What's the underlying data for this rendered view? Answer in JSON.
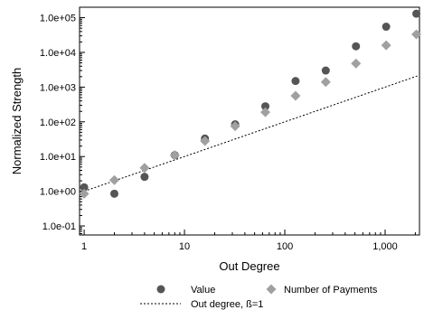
{
  "chart_data": {
    "type": "scatter",
    "title": "",
    "xlabel": "Out Degree",
    "ylabel": "Normalized Strength",
    "x_scale": "log",
    "y_scale": "log",
    "xlim": [
      0.9,
      2200
    ],
    "ylim": [
      0.055,
      200000
    ],
    "x_ticks": [
      {
        "value": 1,
        "label": "1"
      },
      {
        "value": 10,
        "label": "10"
      },
      {
        "value": 100,
        "label": "100"
      },
      {
        "value": 1000,
        "label": "1,000"
      }
    ],
    "y_ticks": [
      {
        "value": 0.1,
        "label": "1.0e-01"
      },
      {
        "value": 1,
        "label": "1.0e+00"
      },
      {
        "value": 10,
        "label": "1.0e+01"
      },
      {
        "value": 100,
        "label": "1.0e+02"
      },
      {
        "value": 1000,
        "label": "1.0e+03"
      },
      {
        "value": 10000,
        "label": "1.0e+04"
      },
      {
        "value": 100000,
        "label": "1.0e+05"
      }
    ],
    "grid": false,
    "legend_position": "bottom",
    "series": [
      {
        "name": "Value",
        "marker": "circle",
        "color": "#555555",
        "x": [
          1,
          2,
          4,
          8,
          16,
          32,
          64,
          128,
          256,
          512,
          1024,
          2048
        ],
        "y": [
          1.3,
          0.85,
          2.6,
          11,
          33,
          85,
          280,
          1500,
          3000,
          15000,
          55000,
          130000
        ]
      },
      {
        "name": "Number of Payments",
        "marker": "diamond",
        "color": "#a0a0a0",
        "x": [
          1,
          2,
          4,
          8,
          16,
          32,
          64,
          128,
          256,
          512,
          1024,
          2048
        ],
        "y": [
          0.85,
          2.1,
          4.7,
          11,
          28,
          75,
          190,
          560,
          1400,
          4800,
          16000,
          33000
        ]
      },
      {
        "name": "Out degree, ß=1",
        "marker": "line",
        "style": "dotted",
        "color": "#000000",
        "x": [
          1,
          2100
        ],
        "y": [
          1,
          2100
        ]
      }
    ]
  }
}
